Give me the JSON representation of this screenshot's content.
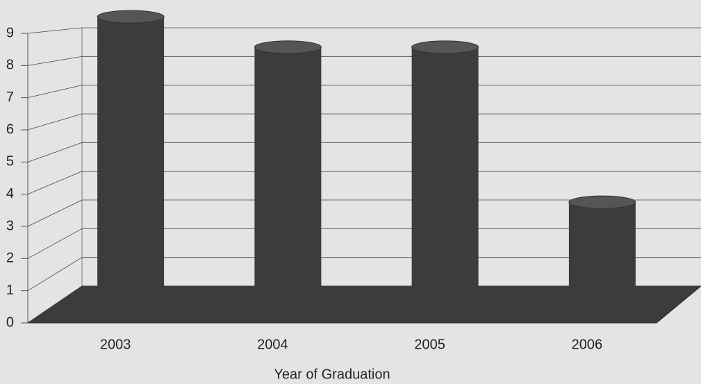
{
  "chart_data": {
    "type": "bar3d",
    "x_label": "Year of Graduation",
    "categories": [
      "2003",
      "2004",
      "2005",
      "2006"
    ],
    "values": [
      9.5,
      8.5,
      8.5,
      3.4
    ],
    "color": "#3c3c3c",
    "ylim": [
      0,
      9
    ],
    "yticks": [
      0,
      1,
      2,
      3,
      4,
      5,
      6,
      7,
      8,
      9
    ],
    "grid": true
  }
}
